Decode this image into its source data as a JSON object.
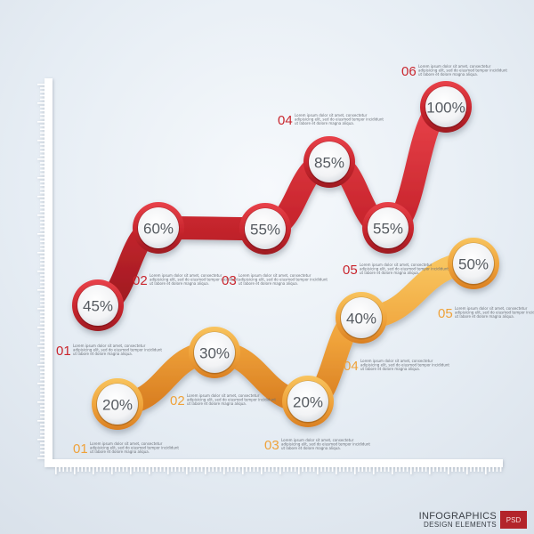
{
  "chart_data": {
    "type": "line",
    "title": "",
    "xlabel": "",
    "ylabel": "",
    "series": [
      {
        "color": "#c9262e",
        "points": [
          {
            "num": "01",
            "label": "45%",
            "value": 45
          },
          {
            "num": "02",
            "label": "60%",
            "value": 60
          },
          {
            "num": "03",
            "label": "55%",
            "value": 55
          },
          {
            "num": "04",
            "label": "85%",
            "value": 85
          },
          {
            "num": "05",
            "label": "55%",
            "value": 55
          },
          {
            "num": "06",
            "label": "100%",
            "value": 100
          }
        ]
      },
      {
        "color": "#efa23a",
        "points": [
          {
            "num": "01",
            "label": "20%",
            "value": 20
          },
          {
            "num": "02",
            "label": "30%",
            "value": 30
          },
          {
            "num": "03",
            "label": "20%",
            "value": 20
          },
          {
            "num": "04",
            "label": "40%",
            "value": 40
          },
          {
            "num": "05",
            "label": "50%",
            "value": 50
          }
        ]
      }
    ],
    "description": [
      "Lorem ipsum dolor sit amet, consectetur",
      "adipisicing elit, sed do eiusmod tempor incididunt",
      "ut labore et dolore magna aliqua."
    ],
    "colors": {
      "red": "#c9262e",
      "orange": "#efa23a",
      "axis": "#ffffff"
    }
  },
  "footer": {
    "title": "INFOGRAPHICS",
    "subtitle": "DESIGN ELEMENTS",
    "badge": "PSD"
  }
}
